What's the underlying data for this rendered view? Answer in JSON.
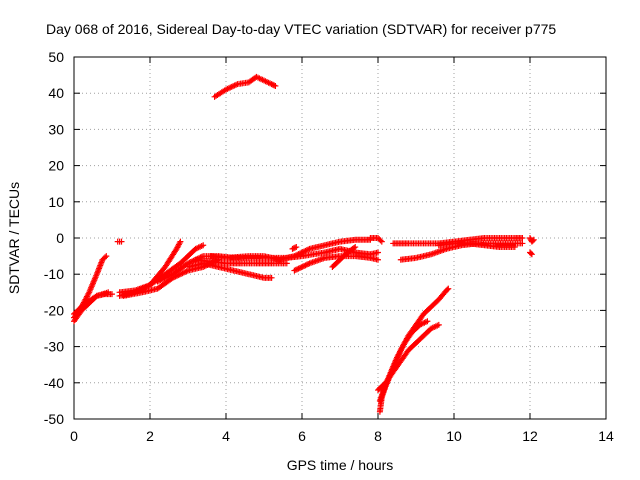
{
  "chart_data": {
    "type": "scatter",
    "title": "Day 068 of 2016, Sidereal Day-to-day VTEC variation (SDTVAR) for receiver p775",
    "xlabel": "GPS time / hours",
    "ylabel": "SDTVAR / TECUs",
    "xlim": [
      0,
      14
    ],
    "ylim": [
      -50,
      50
    ],
    "xticks": [
      "0",
      "2",
      "4",
      "6",
      "8",
      "10",
      "12",
      "14"
    ],
    "yticks": [
      "50",
      "40",
      "30",
      "20",
      "10",
      "0",
      "-10",
      "-20",
      "-30",
      "-40",
      "-50"
    ],
    "grid": true,
    "marker": "plus",
    "color": "#ff0000",
    "tracks": [
      [
        [
          0.0,
          -22
        ],
        [
          0.2,
          -19
        ],
        [
          0.4,
          -15
        ],
        [
          0.6,
          -10
        ],
        [
          0.75,
          -6
        ],
        [
          0.85,
          -5
        ]
      ],
      [
        [
          0.0,
          -23
        ],
        [
          0.2,
          -20
        ],
        [
          0.4,
          -18
        ],
        [
          0.6,
          -16
        ],
        [
          0.8,
          -15.5
        ],
        [
          1.0,
          -15.5
        ]
      ],
      [
        [
          0.0,
          -21
        ],
        [
          0.3,
          -18
        ],
        [
          0.6,
          -16
        ],
        [
          0.9,
          -15
        ]
      ],
      [
        [
          1.15,
          -1
        ],
        [
          1.25,
          -1
        ]
      ],
      [
        [
          1.2,
          -15
        ],
        [
          1.6,
          -14.5
        ],
        [
          2.0,
          -13
        ],
        [
          2.4,
          -8
        ],
        [
          2.7,
          -3
        ],
        [
          2.8,
          -1
        ]
      ],
      [
        [
          1.2,
          -16
        ],
        [
          1.6,
          -15
        ],
        [
          2.0,
          -13
        ],
        [
          2.4,
          -10
        ],
        [
          2.8,
          -7
        ],
        [
          3.0,
          -5
        ],
        [
          3.2,
          -3
        ],
        [
          3.4,
          -2
        ]
      ],
      [
        [
          1.3,
          -16
        ],
        [
          1.8,
          -15
        ],
        [
          2.2,
          -14
        ],
        [
          2.6,
          -11
        ],
        [
          3.0,
          -9
        ],
        [
          3.4,
          -8
        ],
        [
          3.8,
          -6
        ]
      ],
      [
        [
          2.2,
          -12
        ],
        [
          2.6,
          -10
        ],
        [
          3.0,
          -7
        ],
        [
          3.4,
          -5
        ],
        [
          3.8,
          -5
        ],
        [
          4.2,
          -5.5
        ],
        [
          4.8,
          -5.5
        ],
        [
          5.2,
          -5.5
        ],
        [
          5.6,
          -5.5
        ],
        [
          6.0,
          -5
        ],
        [
          6.6,
          -4
        ],
        [
          7.0,
          -3
        ],
        [
          7.4,
          -4
        ],
        [
          7.8,
          -4.5
        ],
        [
          8.0,
          -4
        ]
      ],
      [
        [
          3.0,
          -8
        ],
        [
          3.4,
          -7
        ],
        [
          3.8,
          -8
        ],
        [
          4.2,
          -9
        ],
        [
          4.6,
          -10
        ],
        [
          5.0,
          -11
        ],
        [
          5.2,
          -11
        ]
      ],
      [
        [
          3.2,
          -6
        ],
        [
          3.6,
          -6.5
        ],
        [
          4.0,
          -7
        ],
        [
          4.4,
          -7
        ],
        [
          4.8,
          -7
        ],
        [
          5.2,
          -7
        ],
        [
          5.6,
          -7
        ]
      ],
      [
        [
          3.6,
          -5
        ],
        [
          4.0,
          -5.5
        ],
        [
          4.6,
          -5
        ],
        [
          5.0,
          -5
        ],
        [
          5.4,
          -6
        ],
        [
          5.8,
          -5
        ],
        [
          6.2,
          -3
        ],
        [
          6.6,
          -2
        ],
        [
          7.0,
          -1
        ],
        [
          7.4,
          -0.5
        ],
        [
          7.8,
          -0.5
        ]
      ],
      [
        [
          5.8,
          -9
        ],
        [
          6.2,
          -7
        ],
        [
          6.6,
          -5.5
        ],
        [
          7.0,
          -5
        ],
        [
          7.4,
          -5
        ],
        [
          7.8,
          -5.5
        ],
        [
          8.0,
          -6
        ]
      ],
      [
        [
          6.8,
          -8
        ],
        [
          7.0,
          -6
        ],
        [
          7.2,
          -4
        ],
        [
          7.4,
          -2.5
        ]
      ],
      [
        [
          5.75,
          -3
        ],
        [
          5.85,
          -2.5
        ]
      ],
      [
        [
          7.8,
          0
        ],
        [
          8.0,
          0
        ],
        [
          8.1,
          -1
        ]
      ],
      [
        [
          8.4,
          -1.5
        ],
        [
          8.8,
          -1.5
        ],
        [
          9.2,
          -1.5
        ],
        [
          9.6,
          -1.5
        ],
        [
          10.0,
          -1
        ],
        [
          10.4,
          -0.5
        ],
        [
          10.8,
          0
        ],
        [
          11.2,
          0
        ],
        [
          11.6,
          0
        ],
        [
          11.8,
          0
        ]
      ],
      [
        [
          8.6,
          -6
        ],
        [
          9.0,
          -5.5
        ],
        [
          9.4,
          -4.5
        ],
        [
          9.8,
          -3
        ],
        [
          10.2,
          -2
        ],
        [
          10.6,
          -1.5
        ],
        [
          11.0,
          -1.5
        ],
        [
          11.4,
          -1.5
        ],
        [
          11.8,
          -1.5
        ]
      ],
      [
        [
          9.6,
          -2
        ],
        [
          10.0,
          -1.5
        ],
        [
          10.4,
          -1.5
        ],
        [
          10.8,
          -2
        ],
        [
          11.2,
          -2.5
        ],
        [
          11.6,
          -2.5
        ]
      ],
      [
        [
          12.0,
          0
        ],
        [
          12.05,
          -1
        ],
        [
          12.1,
          -0.5
        ]
      ],
      [
        [
          12.0,
          -4
        ],
        [
          12.05,
          -4.5
        ]
      ],
      [
        [
          3.7,
          39
        ],
        [
          4.0,
          41
        ],
        [
          4.3,
          42.5
        ],
        [
          4.6,
          43
        ],
        [
          4.8,
          44.5
        ],
        [
          5.0,
          43.5
        ],
        [
          5.2,
          42.5
        ],
        [
          5.3,
          42
        ]
      ],
      [
        [
          8.05,
          -48
        ],
        [
          8.1,
          -44
        ],
        [
          8.2,
          -41
        ],
        [
          8.4,
          -36
        ],
        [
          8.6,
          -31
        ],
        [
          8.8,
          -27
        ],
        [
          9.0,
          -24
        ],
        [
          9.2,
          -21
        ],
        [
          9.4,
          -19
        ],
        [
          9.6,
          -17
        ],
        [
          9.8,
          -14.5
        ],
        [
          9.85,
          -14
        ]
      ],
      [
        [
          8.0,
          -42
        ],
        [
          8.2,
          -40
        ],
        [
          8.4,
          -37
        ],
        [
          8.6,
          -34
        ],
        [
          8.8,
          -31
        ],
        [
          9.0,
          -29
        ],
        [
          9.2,
          -27
        ],
        [
          9.4,
          -25
        ],
        [
          9.6,
          -24
        ]
      ],
      [
        [
          8.05,
          -45
        ],
        [
          8.15,
          -42
        ],
        [
          8.3,
          -38
        ],
        [
          8.5,
          -33
        ],
        [
          8.7,
          -29
        ],
        [
          8.9,
          -26
        ],
        [
          9.1,
          -24
        ],
        [
          9.3,
          -23
        ]
      ]
    ]
  }
}
